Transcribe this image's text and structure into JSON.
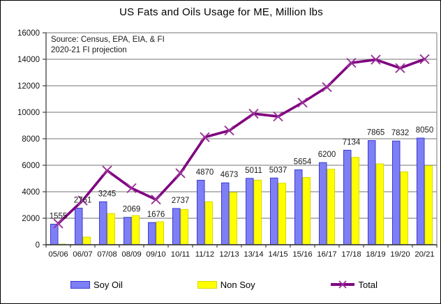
{
  "chart_data": {
    "type": "bar",
    "title": "US Fats and Oils Usage for ME, Million lbs",
    "annotation": {
      "line1": "Source: Census, EPA, EIA, & FI",
      "line2": "2020-21 FI projection"
    },
    "categories": [
      "05/06",
      "06/07",
      "07/08",
      "08/09",
      "09/10",
      "10/11",
      "11/12",
      "12/13",
      "13/14",
      "14/15",
      "15/16",
      "16/17",
      "17/18",
      "18/19",
      "19/20",
      "20/21"
    ],
    "series": [
      {
        "name": "Soy Oil",
        "type": "bar",
        "color": "#7f7ff5",
        "border": "#3a3ad0",
        "values": [
          1555,
          2761,
          3245,
          2069,
          1676,
          2737,
          4870,
          4673,
          5011,
          5037,
          5654,
          6200,
          7134,
          7865,
          7832,
          8050
        ],
        "data_labels": true
      },
      {
        "name": "Non Soy",
        "type": "bar",
        "color": "#ffff00",
        "border": "#d8d800",
        "values": [
          45,
          580,
          2355,
          2200,
          1735,
          2665,
          3250,
          3945,
          4880,
          4645,
          5075,
          5700,
          6595,
          6105,
          5500,
          5960
        ],
        "data_labels": false
      },
      {
        "name": "Total",
        "type": "line",
        "color": "#800080",
        "marker": "x",
        "marker_color": "#993399",
        "values": [
          1600,
          3340,
          5600,
          4270,
          3410,
          5400,
          8120,
          8620,
          9890,
          9680,
          10730,
          11900,
          13730,
          13970,
          13330,
          14010
        ],
        "data_labels": false
      }
    ],
    "ylim": [
      0,
      16000
    ],
    "yticks": [
      0,
      2000,
      4000,
      6000,
      8000,
      10000,
      12000,
      14000,
      16000
    ],
    "xlabel": "",
    "ylabel": "",
    "grid": true,
    "legend_position": "bottom"
  }
}
